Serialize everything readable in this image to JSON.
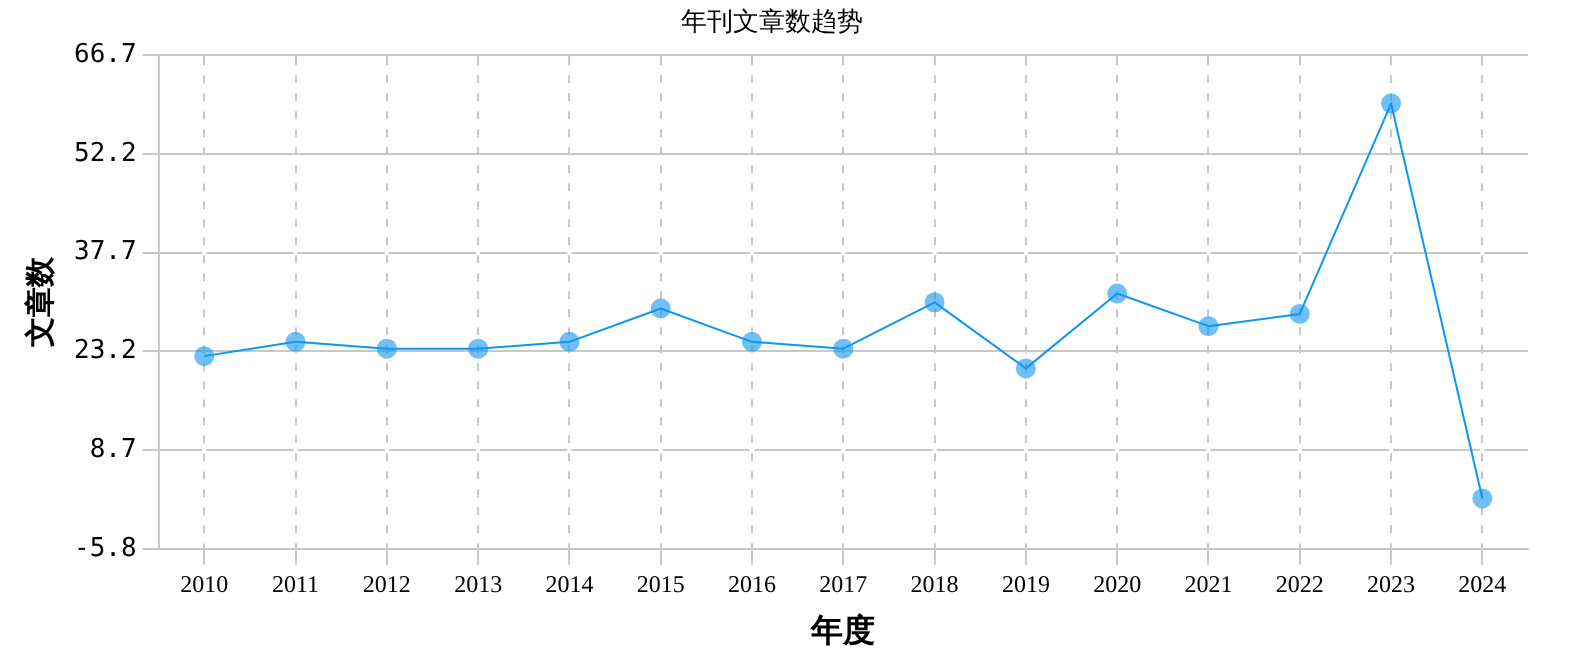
{
  "chart_data": {
    "type": "line",
    "title": "年刊文章数趋势",
    "xlabel": "年度",
    "ylabel": "文章数",
    "categories": [
      "2010",
      "2011",
      "2012",
      "2013",
      "2014",
      "2015",
      "2016",
      "2017",
      "2018",
      "2019",
      "2020",
      "2021",
      "2022",
      "2023",
      "2024"
    ],
    "series": [
      {
        "color": "#0d96f2",
        "values": [
          22.5,
          24.6,
          23.6,
          23.6,
          24.6,
          29.5,
          24.6,
          23.6,
          30.4,
          20.7,
          31.7,
          26.9,
          28.7,
          59.6,
          1.6
        ]
      }
    ],
    "ylim": [
      -5.8,
      66.7
    ],
    "yticks": [
      -5.8,
      8.7,
      23.2,
      37.7,
      52.2,
      66.7
    ],
    "grid": true,
    "marker": "circle",
    "line_style": "solid",
    "legend": false
  }
}
